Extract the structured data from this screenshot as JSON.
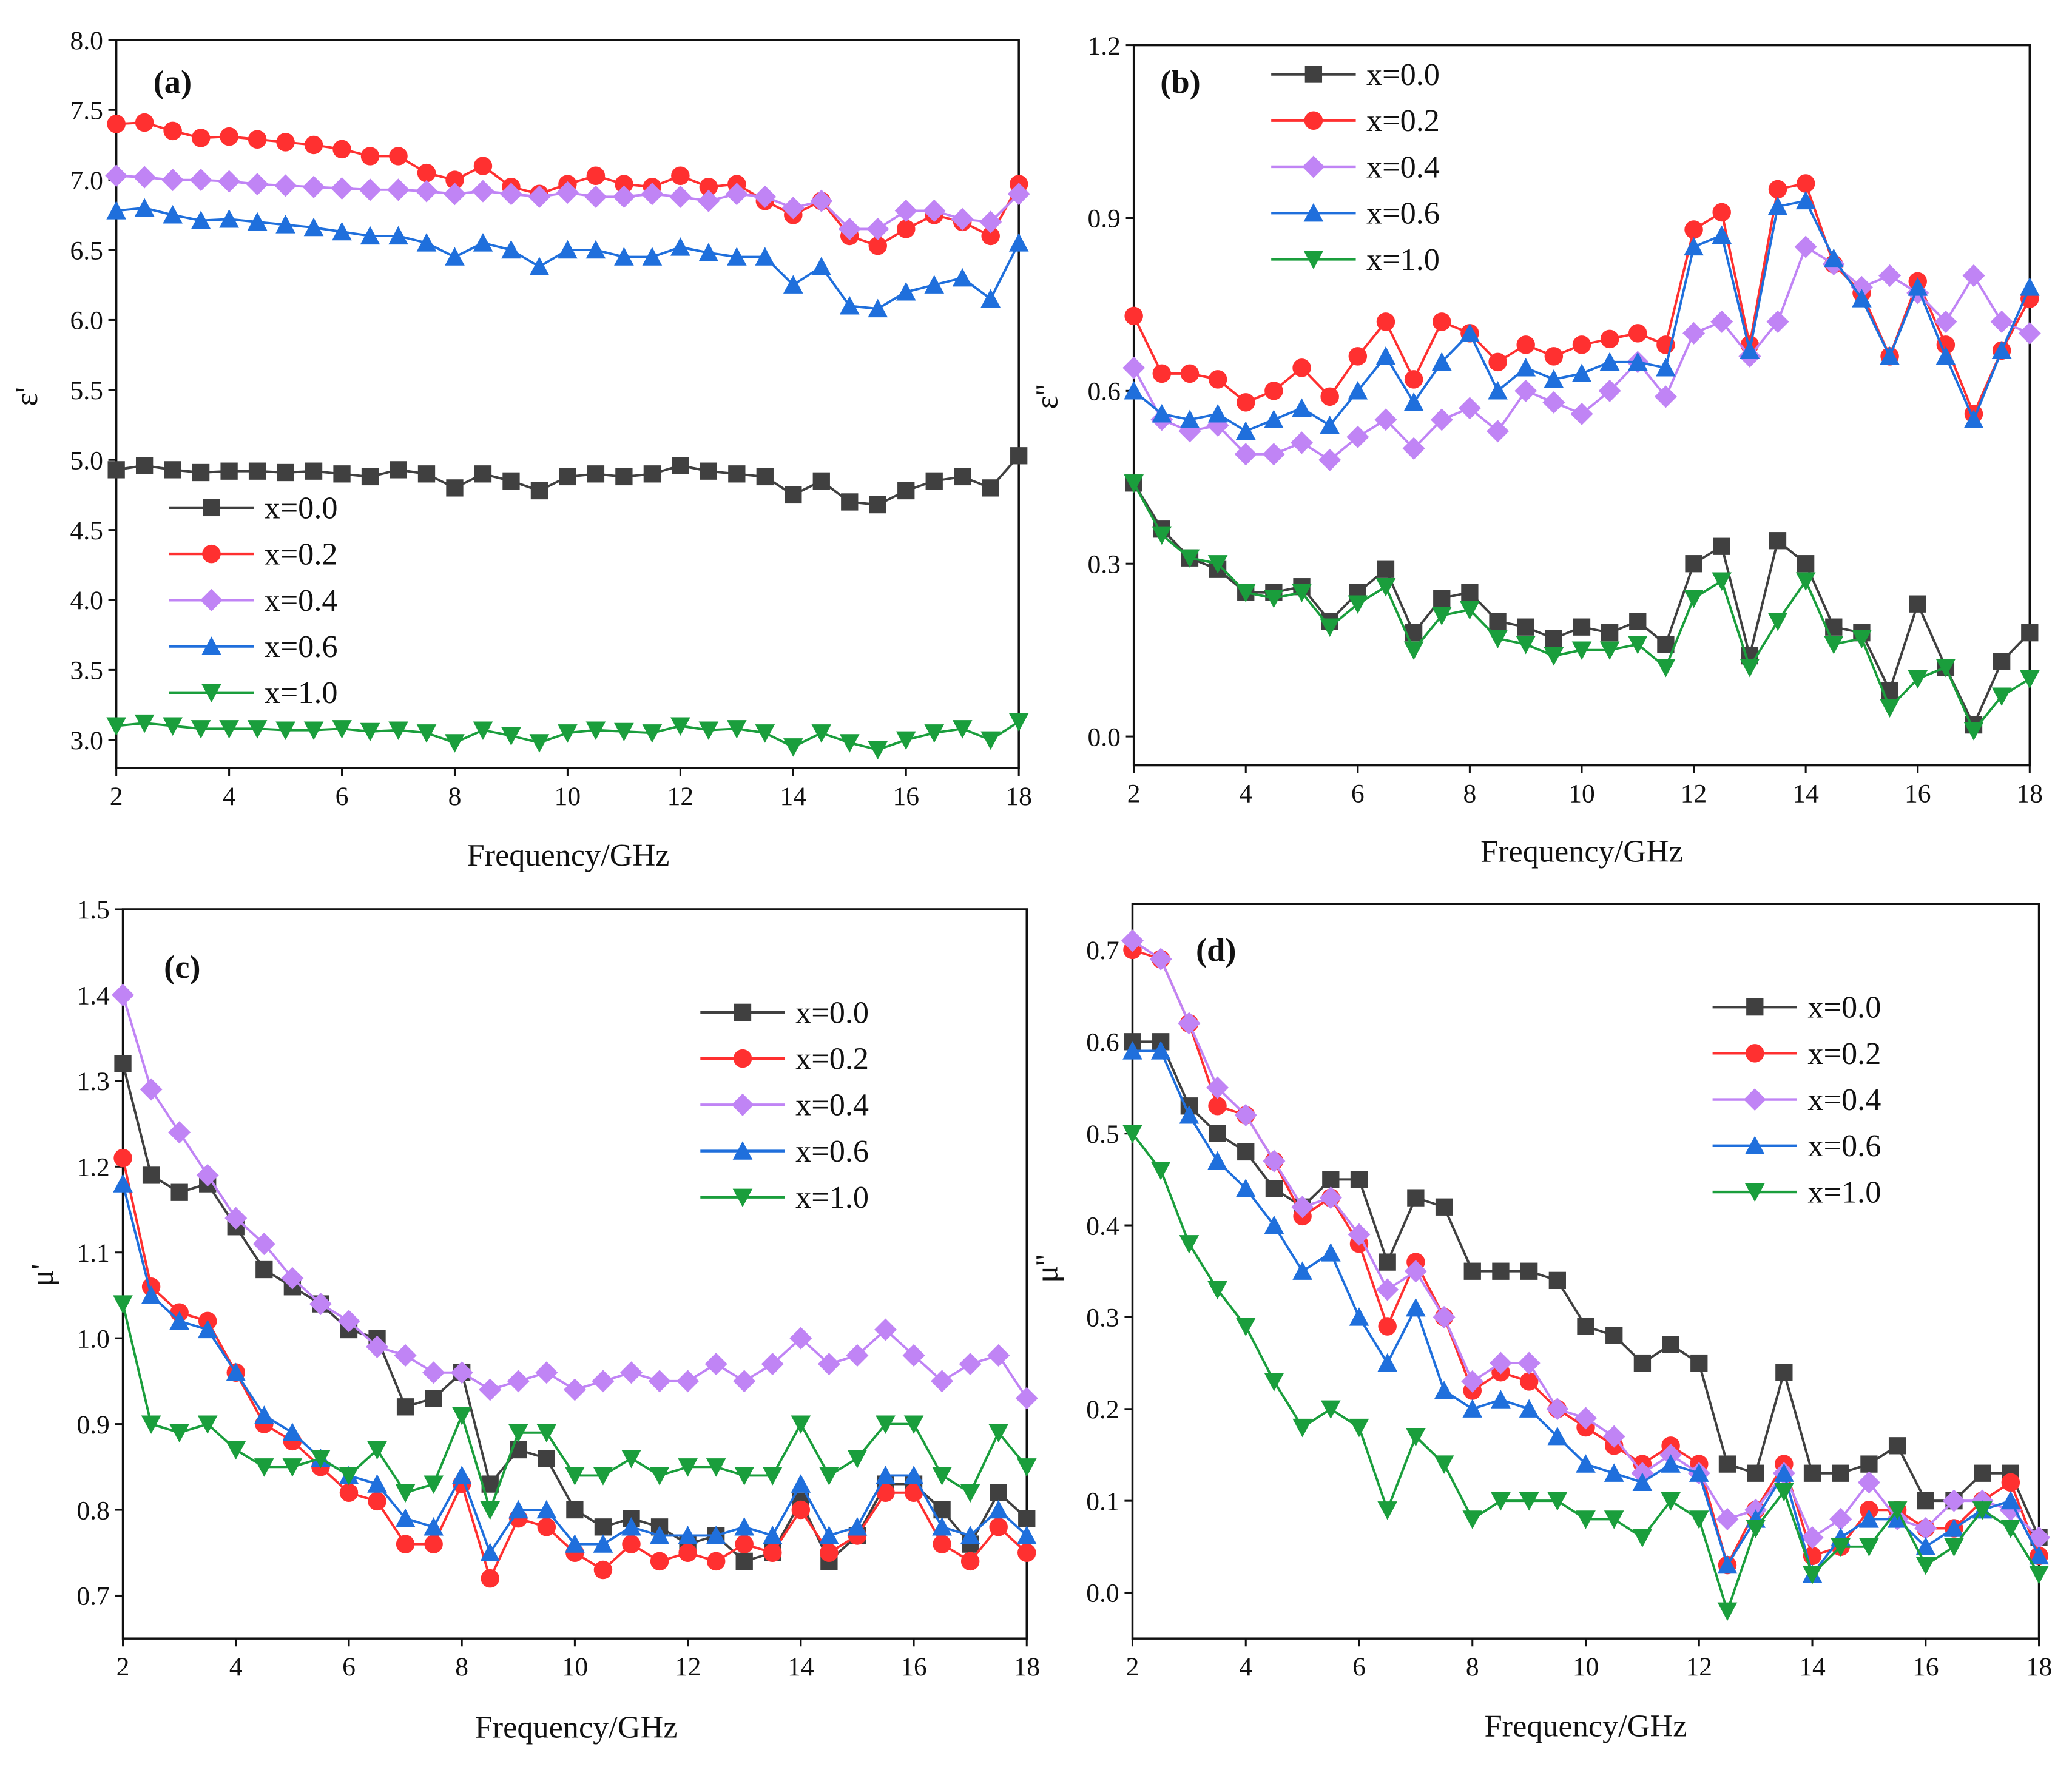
{
  "colors": {
    "x=0.0": "#404040",
    "x=0.2": "#ff3030",
    "x=0.4": "#c084f5",
    "x=0.6": "#1f6fdc",
    "x=1.0": "#1a9e3c"
  },
  "chart_data": [
    {
      "type": "line",
      "panel_label": "(a)",
      "xlabel": "Frequency/GHz",
      "ylabel": "ε'",
      "xlim": [
        2,
        18
      ],
      "ylim": [
        2.8,
        8.0
      ],
      "xticks": [
        "2",
        "4",
        "6",
        "8",
        "10",
        "12",
        "14",
        "16",
        "18"
      ],
      "yticks": [
        "3.0",
        "3.5",
        "4.0",
        "4.5",
        "5.0",
        "5.5",
        "6.0",
        "6.5",
        "7.0",
        "7.5",
        "8.0"
      ],
      "legend_position": "center-left",
      "x": [
        2,
        2.5,
        3,
        3.5,
        4,
        4.5,
        5,
        5.5,
        6,
        6.5,
        7,
        7.5,
        8,
        8.5,
        9,
        9.5,
        10,
        10.5,
        11,
        11.5,
        12,
        12.5,
        13,
        13.5,
        14,
        14.5,
        15,
        15.5,
        16,
        16.5,
        17,
        17.5,
        18
      ],
      "series": [
        {
          "name": "x=0.0",
          "marker": "square",
          "values": [
            4.93,
            4.96,
            4.93,
            4.91,
            4.92,
            4.92,
            4.91,
            4.92,
            4.9,
            4.88,
            4.93,
            4.9,
            4.8,
            4.9,
            4.85,
            4.78,
            4.88,
            4.9,
            4.88,
            4.9,
            4.96,
            4.92,
            4.9,
            4.88,
            4.75,
            4.85,
            4.7,
            4.68,
            4.78,
            4.85,
            4.88,
            4.8,
            5.03
          ]
        },
        {
          "name": "x=0.2",
          "marker": "circle",
          "values": [
            7.4,
            7.41,
            7.35,
            7.3,
            7.31,
            7.29,
            7.27,
            7.25,
            7.22,
            7.17,
            7.17,
            7.05,
            7.0,
            7.1,
            6.95,
            6.9,
            6.97,
            7.03,
            6.97,
            6.95,
            7.03,
            6.95,
            6.97,
            6.85,
            6.75,
            6.85,
            6.6,
            6.53,
            6.65,
            6.75,
            6.7,
            6.6,
            6.97
          ]
        },
        {
          "name": "x=0.4",
          "marker": "diamond",
          "values": [
            7.03,
            7.02,
            7.0,
            7.0,
            6.99,
            6.97,
            6.96,
            6.95,
            6.94,
            6.93,
            6.93,
            6.92,
            6.9,
            6.92,
            6.9,
            6.88,
            6.91,
            6.88,
            6.88,
            6.9,
            6.88,
            6.85,
            6.9,
            6.88,
            6.8,
            6.85,
            6.65,
            6.65,
            6.78,
            6.78,
            6.72,
            6.7,
            6.9
          ]
        },
        {
          "name": "x=0.6",
          "marker": "triangle-up",
          "values": [
            6.78,
            6.8,
            6.75,
            6.71,
            6.72,
            6.7,
            6.68,
            6.66,
            6.63,
            6.6,
            6.6,
            6.55,
            6.45,
            6.55,
            6.5,
            6.38,
            6.5,
            6.5,
            6.45,
            6.45,
            6.52,
            6.48,
            6.45,
            6.45,
            6.25,
            6.38,
            6.1,
            6.08,
            6.2,
            6.25,
            6.3,
            6.15,
            6.55
          ]
        },
        {
          "name": "x=1.0",
          "marker": "triangle-down",
          "values": [
            3.1,
            3.12,
            3.1,
            3.08,
            3.08,
            3.08,
            3.07,
            3.07,
            3.08,
            3.06,
            3.07,
            3.05,
            2.98,
            3.07,
            3.03,
            2.98,
            3.05,
            3.07,
            3.06,
            3.05,
            3.1,
            3.07,
            3.08,
            3.05,
            2.95,
            3.05,
            2.98,
            2.93,
            3.0,
            3.05,
            3.08,
            3.0,
            3.13
          ]
        }
      ]
    },
    {
      "type": "line",
      "panel_label": "(b)",
      "xlabel": "Frequency/GHz",
      "ylabel": "ε''",
      "xlim": [
        2,
        18
      ],
      "ylim": [
        -0.05,
        1.2
      ],
      "xticks": [
        "2",
        "4",
        "6",
        "8",
        "10",
        "12",
        "14",
        "16",
        "18"
      ],
      "yticks": [
        "0.0",
        "0.3",
        "0.6",
        "0.9",
        "1.2"
      ],
      "legend_position": "top-left",
      "x": [
        2,
        2.5,
        3,
        3.5,
        4,
        4.5,
        5,
        5.5,
        6,
        6.5,
        7,
        7.5,
        8,
        8.5,
        9,
        9.5,
        10,
        10.5,
        11,
        11.5,
        12,
        12.5,
        13,
        13.5,
        14,
        14.5,
        15,
        15.5,
        16,
        16.5,
        17,
        17.5,
        18
      ],
      "series": [
        {
          "name": "x=0.0",
          "marker": "square",
          "values": [
            0.44,
            0.36,
            0.31,
            0.29,
            0.25,
            0.25,
            0.26,
            0.2,
            0.25,
            0.29,
            0.18,
            0.24,
            0.25,
            0.2,
            0.19,
            0.17,
            0.19,
            0.18,
            0.2,
            0.16,
            0.3,
            0.33,
            0.14,
            0.34,
            0.3,
            0.19,
            0.18,
            0.08,
            0.23,
            0.12,
            0.02,
            0.13,
            0.18
          ]
        },
        {
          "name": "x=0.2",
          "marker": "circle",
          "values": [
            0.73,
            0.63,
            0.63,
            0.62,
            0.58,
            0.6,
            0.64,
            0.59,
            0.66,
            0.72,
            0.62,
            0.72,
            0.7,
            0.65,
            0.68,
            0.66,
            0.68,
            0.69,
            0.7,
            0.68,
            0.88,
            0.91,
            0.68,
            0.95,
            0.96,
            0.82,
            0.77,
            0.66,
            0.79,
            0.68,
            0.56,
            0.67,
            0.76
          ]
        },
        {
          "name": "x=0.4",
          "marker": "diamond",
          "values": [
            0.64,
            0.55,
            0.53,
            0.54,
            0.49,
            0.49,
            0.51,
            0.48,
            0.52,
            0.55,
            0.5,
            0.55,
            0.57,
            0.53,
            0.6,
            0.58,
            0.56,
            0.6,
            0.65,
            0.59,
            0.7,
            0.72,
            0.66,
            0.72,
            0.85,
            0.82,
            0.78,
            0.8,
            0.77,
            0.72,
            0.8,
            0.72,
            0.7
          ]
        },
        {
          "name": "x=0.6",
          "marker": "triangle-up",
          "values": [
            0.6,
            0.56,
            0.55,
            0.56,
            0.53,
            0.55,
            0.57,
            0.54,
            0.6,
            0.66,
            0.58,
            0.65,
            0.7,
            0.6,
            0.64,
            0.62,
            0.63,
            0.65,
            0.65,
            0.64,
            0.85,
            0.87,
            0.67,
            0.92,
            0.93,
            0.83,
            0.76,
            0.66,
            0.78,
            0.66,
            0.55,
            0.67,
            0.78
          ]
        },
        {
          "name": "x=1.0",
          "marker": "triangle-down",
          "values": [
            0.44,
            0.35,
            0.31,
            0.3,
            0.25,
            0.24,
            0.25,
            0.19,
            0.23,
            0.26,
            0.15,
            0.21,
            0.22,
            0.17,
            0.16,
            0.14,
            0.15,
            0.15,
            0.16,
            0.12,
            0.24,
            0.27,
            0.12,
            0.2,
            0.27,
            0.16,
            0.17,
            0.05,
            0.1,
            0.12,
            0.01,
            0.07,
            0.1
          ]
        }
      ]
    },
    {
      "type": "line",
      "panel_label": "(c)",
      "xlabel": "Frequency/GHz",
      "ylabel": "μ'",
      "xlim": [
        2,
        18
      ],
      "ylim": [
        0.65,
        1.5
      ],
      "xticks": [
        "2",
        "4",
        "6",
        "8",
        "10",
        "12",
        "14",
        "16",
        "18"
      ],
      "yticks": [
        "0.7",
        "0.8",
        "0.9",
        "1.0",
        "1.1",
        "1.2",
        "1.3",
        "1.4",
        "1.5"
      ],
      "legend_position": "top-right",
      "x": [
        2,
        2.5,
        3,
        3.5,
        4,
        4.5,
        5,
        5.5,
        6,
        6.5,
        7,
        7.5,
        8,
        8.5,
        9,
        9.5,
        10,
        10.5,
        11,
        11.5,
        12,
        12.5,
        13,
        13.5,
        14,
        14.5,
        15,
        15.5,
        16,
        16.5,
        17,
        17.5,
        18
      ],
      "series": [
        {
          "name": "x=0.0",
          "marker": "square",
          "values": [
            1.32,
            1.19,
            1.17,
            1.18,
            1.13,
            1.08,
            1.06,
            1.04,
            1.01,
            1.0,
            0.92,
            0.93,
            0.96,
            0.83,
            0.87,
            0.86,
            0.8,
            0.78,
            0.79,
            0.78,
            0.76,
            0.77,
            0.74,
            0.75,
            0.81,
            0.74,
            0.77,
            0.83,
            0.83,
            0.8,
            0.76,
            0.82,
            0.79
          ]
        },
        {
          "name": "x=0.2",
          "marker": "circle",
          "values": [
            1.21,
            1.06,
            1.03,
            1.02,
            0.96,
            0.9,
            0.88,
            0.85,
            0.82,
            0.81,
            0.76,
            0.76,
            0.83,
            0.72,
            0.79,
            0.78,
            0.75,
            0.73,
            0.76,
            0.74,
            0.75,
            0.74,
            0.76,
            0.75,
            0.8,
            0.75,
            0.77,
            0.82,
            0.82,
            0.76,
            0.74,
            0.78,
            0.75
          ]
        },
        {
          "name": "x=0.4",
          "marker": "diamond",
          "values": [
            1.4,
            1.29,
            1.24,
            1.19,
            1.14,
            1.11,
            1.07,
            1.04,
            1.02,
            0.99,
            0.98,
            0.96,
            0.96,
            0.94,
            0.95,
            0.96,
            0.94,
            0.95,
            0.96,
            0.95,
            0.95,
            0.97,
            0.95,
            0.97,
            1.0,
            0.97,
            0.98,
            1.01,
            0.98,
            0.95,
            0.97,
            0.98,
            0.93
          ]
        },
        {
          "name": "x=0.6",
          "marker": "triangle-up",
          "values": [
            1.18,
            1.05,
            1.02,
            1.01,
            0.96,
            0.91,
            0.89,
            0.86,
            0.84,
            0.83,
            0.79,
            0.78,
            0.84,
            0.75,
            0.8,
            0.8,
            0.76,
            0.76,
            0.78,
            0.77,
            0.77,
            0.77,
            0.78,
            0.77,
            0.83,
            0.77,
            0.78,
            0.84,
            0.84,
            0.78,
            0.77,
            0.8,
            0.77
          ]
        },
        {
          "name": "x=1.0",
          "marker": "triangle-down",
          "values": [
            1.04,
            0.9,
            0.89,
            0.9,
            0.87,
            0.85,
            0.85,
            0.86,
            0.84,
            0.87,
            0.82,
            0.83,
            0.91,
            0.8,
            0.89,
            0.89,
            0.84,
            0.84,
            0.86,
            0.84,
            0.85,
            0.85,
            0.84,
            0.84,
            0.9,
            0.84,
            0.86,
            0.9,
            0.9,
            0.84,
            0.82,
            0.89,
            0.85
          ]
        }
      ]
    },
    {
      "type": "line",
      "panel_label": "(d)",
      "xlabel": "Frequency/GHz",
      "ylabel": "μ''",
      "xlim": [
        2,
        18
      ],
      "ylim": [
        -0.05,
        0.75
      ],
      "xticks": [
        "2",
        "4",
        "6",
        "8",
        "10",
        "12",
        "14",
        "16",
        "18"
      ],
      "yticks": [
        "0.0",
        "0.1",
        "0.2",
        "0.3",
        "0.4",
        "0.5",
        "0.6",
        "0.7"
      ],
      "legend_position": "top-right",
      "x": [
        2,
        2.5,
        3,
        3.5,
        4,
        4.5,
        5,
        5.5,
        6,
        6.5,
        7,
        7.5,
        8,
        8.5,
        9,
        9.5,
        10,
        10.5,
        11,
        11.5,
        12,
        12.5,
        13,
        13.5,
        14,
        14.5,
        15,
        15.5,
        16,
        16.5,
        17,
        17.5,
        18
      ],
      "series": [
        {
          "name": "x=0.0",
          "marker": "square",
          "values": [
            0.6,
            0.6,
            0.53,
            0.5,
            0.48,
            0.44,
            0.42,
            0.45,
            0.45,
            0.36,
            0.43,
            0.42,
            0.35,
            0.35,
            0.35,
            0.34,
            0.29,
            0.28,
            0.25,
            0.27,
            0.25,
            0.14,
            0.13,
            0.24,
            0.13,
            0.13,
            0.14,
            0.16,
            0.1,
            0.1,
            0.13,
            0.13,
            0.06
          ]
        },
        {
          "name": "x=0.2",
          "marker": "circle",
          "values": [
            0.7,
            0.69,
            0.62,
            0.53,
            0.52,
            0.47,
            0.41,
            0.43,
            0.38,
            0.29,
            0.36,
            0.3,
            0.22,
            0.24,
            0.23,
            0.2,
            0.18,
            0.16,
            0.14,
            0.16,
            0.14,
            0.03,
            0.09,
            0.14,
            0.04,
            0.05,
            0.09,
            0.09,
            0.07,
            0.07,
            0.1,
            0.12,
            0.04
          ]
        },
        {
          "name": "x=0.4",
          "marker": "diamond",
          "values": [
            0.71,
            0.69,
            0.62,
            0.55,
            0.52,
            0.47,
            0.42,
            0.43,
            0.39,
            0.33,
            0.35,
            0.3,
            0.23,
            0.25,
            0.25,
            0.2,
            0.19,
            0.17,
            0.13,
            0.15,
            0.13,
            0.08,
            0.09,
            0.13,
            0.06,
            0.08,
            0.12,
            0.08,
            0.07,
            0.1,
            0.1,
            0.09,
            0.06
          ]
        },
        {
          "name": "x=0.6",
          "marker": "triangle-up",
          "values": [
            0.59,
            0.59,
            0.52,
            0.47,
            0.44,
            0.4,
            0.35,
            0.37,
            0.3,
            0.25,
            0.31,
            0.22,
            0.2,
            0.21,
            0.2,
            0.17,
            0.14,
            0.13,
            0.12,
            0.14,
            0.13,
            0.03,
            0.08,
            0.13,
            0.02,
            0.06,
            0.08,
            0.08,
            0.05,
            0.07,
            0.09,
            0.1,
            0.04
          ]
        },
        {
          "name": "x=1.0",
          "marker": "triangle-down",
          "values": [
            0.5,
            0.46,
            0.38,
            0.33,
            0.29,
            0.23,
            0.18,
            0.2,
            0.18,
            0.09,
            0.17,
            0.14,
            0.08,
            0.1,
            0.1,
            0.1,
            0.08,
            0.08,
            0.06,
            0.1,
            0.08,
            -0.02,
            0.07,
            0.11,
            0.02,
            0.05,
            0.05,
            0.09,
            0.03,
            0.05,
            0.09,
            0.07,
            0.02
          ]
        }
      ]
    }
  ]
}
